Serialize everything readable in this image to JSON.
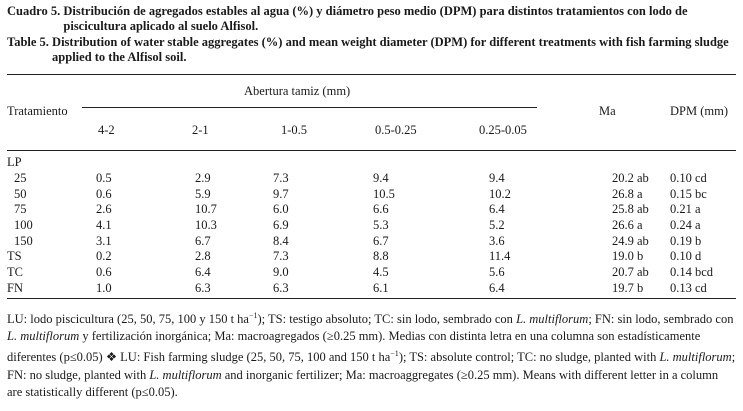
{
  "caption": {
    "es_label": "Cuadro 5.",
    "es_text": "Distribución de agregados estables al agua (%) y diámetro peso medio (DPM) para distintos tratamientos con lodo de piscicultura aplicado al suelo Alfisol.",
    "en_label": "Table 5.",
    "en_text": "Distribution of water stable aggregates (%) and mean weight diameter (DPM) for different treatments with fish farming sludge applied to the Alfisol soil."
  },
  "header": {
    "treatment": "Tratamiento",
    "sieve": "Abertura tamiz (mm)",
    "sizes": [
      "4-2",
      "2-1",
      "1-0.5",
      "0.5-0.25",
      "0.25-0.05"
    ],
    "ma": "Ma",
    "dpm": "DPM (mm)"
  },
  "rows": [
    {
      "name": "LP",
      "indent": false,
      "cells": [
        "",
        "",
        "",
        "",
        "",
        "",
        ""
      ]
    },
    {
      "name": "25",
      "indent": true,
      "cells": [
        "0.5",
        "2.9",
        "7.3",
        "9.4",
        "9.4",
        "20.2 ab",
        "0.10 cd"
      ]
    },
    {
      "name": "50",
      "indent": true,
      "cells": [
        "0.6",
        "5.9",
        "9.7",
        "10.5",
        "10.2",
        "26.8 a",
        "0.15 bc"
      ]
    },
    {
      "name": "75",
      "indent": true,
      "cells": [
        "2.6",
        "10.7",
        "6.0",
        "6.6",
        "6.4",
        "25.8 ab",
        "0.21 a"
      ]
    },
    {
      "name": "100",
      "indent": true,
      "cells": [
        "4.1",
        "10.3",
        "6.9",
        "5.3",
        "5.2",
        "26.6 a",
        "0.24 a"
      ]
    },
    {
      "name": "150",
      "indent": true,
      "cells": [
        "3.1",
        "6.7",
        "8.4",
        "6.7",
        "3.6",
        "24.9 ab",
        "0.19 b"
      ]
    },
    {
      "name": "TS",
      "indent": false,
      "cells": [
        "0.2",
        "2.8",
        "7.3",
        "8.8",
        "11.4",
        "19.0 b",
        "0.10 d"
      ]
    },
    {
      "name": "TC",
      "indent": false,
      "cells": [
        "0.6",
        "6.4",
        "9.0",
        "4.5",
        "5.6",
        "20.7 ab",
        "0.14 bcd"
      ]
    },
    {
      "name": "FN",
      "indent": false,
      "cells": [
        "1.0",
        "6.3",
        "6.3",
        "6.1",
        "6.4",
        "19.7 b",
        "0.13 cd"
      ]
    }
  ],
  "footnote": {
    "es_a": "LU: lodo piscicultura (25, 50, 75, 100 y 150 t ha",
    "sup": "−1",
    "es_b": "); TS: testigo absoluto; TC: sin lodo, sembrado con ",
    "lm": "L. multiflorum",
    "es_c": "; FN: sin lodo, sembrado con ",
    "es_d": " y fertilización inorgánica; Ma: macroagregados (≥0.25 mm). Medias con distinta letra en una columna son estadísticamente diferentes (p≤0.05) ❖ LU: Fish farming sludge (25, 50, 75, 100 and 150 t ha",
    "en_a": "); TS: absolute control; TC: no sludge, planted with ",
    "en_b": "; FN: no sludge, planted with ",
    "en_c": " and inorganic fertilizer; Ma: macroaggregates (≥0.25 mm). Means with different letter in a column are statistically different (p≤0.05)."
  }
}
